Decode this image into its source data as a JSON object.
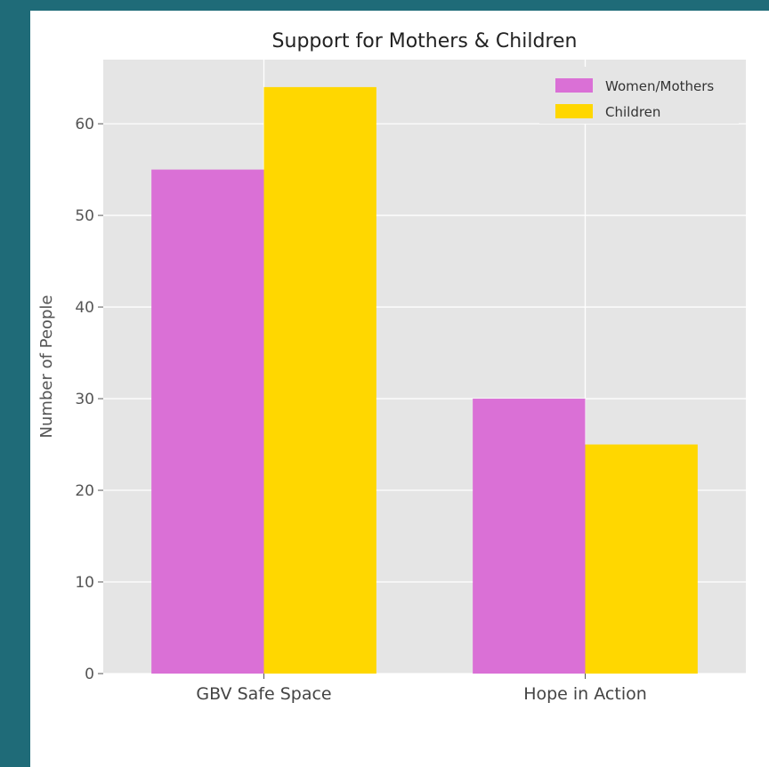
{
  "chart_data": {
    "type": "bar",
    "title": "Support for Mothers & Children",
    "xlabel": "",
    "ylabel": "Number of People",
    "categories": [
      "GBV Safe Space",
      "Hope in Action"
    ],
    "series": [
      {
        "name": "Women/Mothers",
        "values": [
          55,
          30
        ],
        "color": "#da70d6"
      },
      {
        "name": "Children",
        "values": [
          64,
          25
        ],
        "color": "#ffd700"
      }
    ],
    "ylim": [
      0,
      67
    ],
    "yticks": [
      0,
      10,
      20,
      30,
      40,
      50,
      60
    ],
    "grid": true,
    "legend_position": "top-right",
    "plot_background": "#e5e5e5"
  }
}
